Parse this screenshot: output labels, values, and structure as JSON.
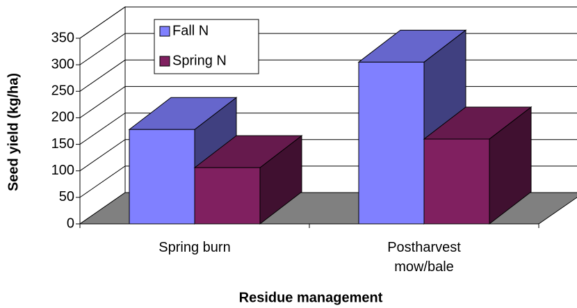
{
  "chart_data": {
    "type": "bar3d",
    "x_label": "Residue management",
    "y_label": "Seed yield (kg/ha)",
    "categories": [
      "Spring burn",
      "Postharvest\nmow/bale"
    ],
    "series": [
      {
        "name": "Fall N",
        "color": "#8080ff",
        "values": [
          178,
          305
        ]
      },
      {
        "name": "Spring N",
        "color": "#802060",
        "values": [
          106,
          160
        ]
      }
    ],
    "ylim": [
      0,
      350
    ],
    "yticks": [
      0,
      50,
      100,
      150,
      200,
      250,
      300,
      350
    ],
    "grid": true,
    "legend": "top-left"
  }
}
